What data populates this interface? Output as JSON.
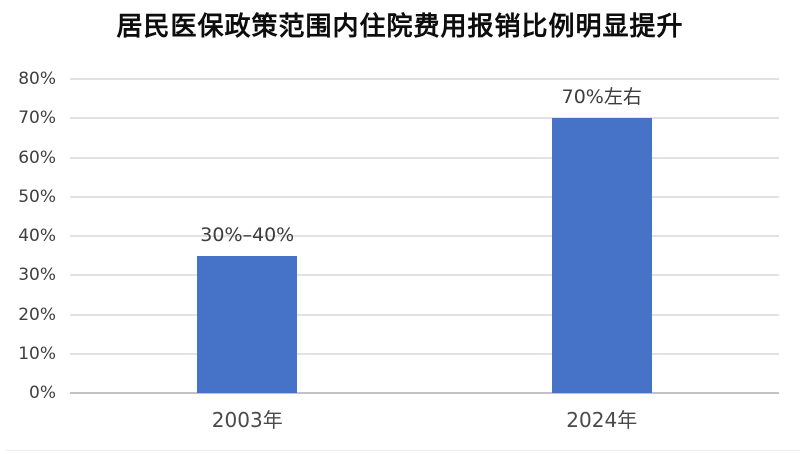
{
  "page": {
    "background_color": "#ffffff"
  },
  "chart_data": {
    "type": "bar",
    "title": "居民医保政策范围内住院费用报销比例明显提升",
    "categories": [
      "2003年",
      "2024年"
    ],
    "values": [
      35,
      70
    ],
    "bar_labels": [
      "30%–40%",
      "70%左右"
    ],
    "xlabel": "",
    "ylabel": "",
    "ylim": [
      0,
      80
    ],
    "ytick_step": 10,
    "ytick_labels": [
      "0%",
      "10%",
      "20%",
      "30%",
      "40%",
      "50%",
      "60%",
      "70%",
      "80%"
    ],
    "grid": true,
    "legend": "none",
    "bar_color": "#4673c8",
    "gridline_color": "#e2e2e2",
    "axis_line_color": "#c2c2c2",
    "title_color": "#0d0d0d",
    "tick_label_color": "#3f3f3f"
  }
}
